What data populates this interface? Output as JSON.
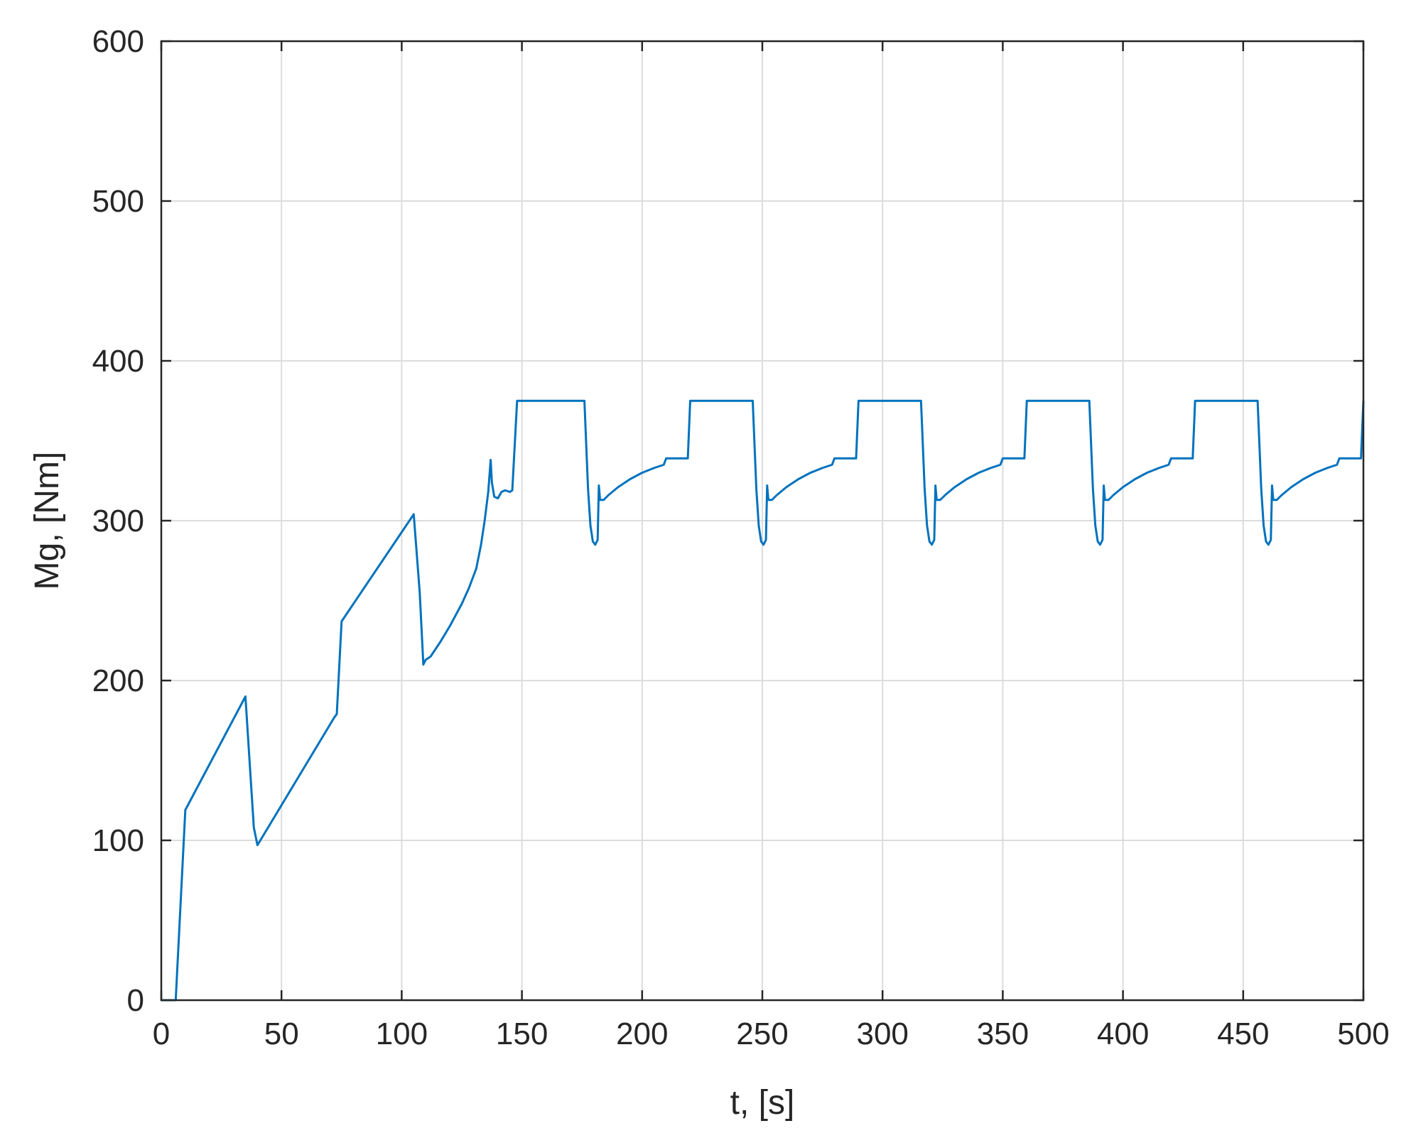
{
  "chart_data": {
    "type": "line",
    "title": "",
    "xlabel": "t, [s]",
    "ylabel": "Mg, [Nm]",
    "xlim": [
      0,
      500
    ],
    "ylim": [
      0,
      600
    ],
    "xticks": [
      0,
      50,
      100,
      150,
      200,
      250,
      300,
      350,
      400,
      450,
      500
    ],
    "yticks": [
      0,
      100,
      200,
      300,
      400,
      500,
      600
    ],
    "xtick_labels": [
      "0",
      "50",
      "100",
      "150",
      "200",
      "250",
      "300",
      "350",
      "400",
      "450",
      "500"
    ],
    "ytick_labels": [
      "0",
      "100",
      "200",
      "300",
      "400",
      "500",
      "600"
    ],
    "grid": true,
    "legend": "none",
    "series": [
      {
        "color": "#0072BD",
        "x": [
          0,
          3,
          6,
          10,
          35,
          38.5,
          40,
          72,
          73,
          75,
          105,
          107.5,
          109,
          110,
          112,
          116,
          120,
          125,
          128,
          131,
          133,
          134.5,
          136,
          137,
          137.5,
          138.5,
          140,
          141.5,
          143,
          145,
          146,
          148,
          176,
          177.5,
          178.5,
          179.5,
          180.5,
          181.5,
          182,
          182.5,
          184,
          186,
          190,
          195,
          200,
          205,
          209,
          210,
          211,
          218,
          219,
          220,
          246,
          247.5,
          248.5,
          249.5,
          250.5,
          251.5,
          252,
          252.5,
          254,
          256,
          260,
          265,
          270,
          275,
          279,
          280,
          281,
          288,
          289,
          290,
          316,
          317.5,
          318.5,
          319.5,
          320.5,
          321.5,
          322,
          322.5,
          324,
          326,
          330,
          335,
          340,
          345,
          349,
          350,
          351,
          358,
          359,
          360,
          386,
          387.5,
          388.5,
          389.5,
          390.5,
          391.5,
          392,
          392.5,
          394,
          396,
          400,
          405,
          410,
          415,
          419,
          420,
          421,
          428,
          429,
          430,
          456,
          457.5,
          458.5,
          459.5,
          460.5,
          461.5,
          462,
          462.5,
          464,
          466,
          470,
          475,
          480,
          485,
          489,
          490,
          491,
          498,
          499,
          500
        ],
        "y": [
          0,
          0,
          0,
          119,
          190,
          108,
          97,
          177,
          179,
          237,
          304,
          255,
          210,
          213,
          215,
          224,
          234,
          248,
          258,
          270,
          285,
          300,
          318,
          338,
          324,
          315,
          314,
          318,
          319,
          318,
          319,
          375,
          375,
          320,
          297,
          287,
          285,
          288,
          322,
          313,
          313,
          316,
          321,
          326,
          330,
          333,
          335,
          339,
          339,
          339,
          339,
          375,
          375,
          320,
          297,
          287,
          285,
          288,
          322,
          313,
          313,
          316,
          321,
          326,
          330,
          333,
          335,
          339,
          339,
          339,
          339,
          375,
          375,
          320,
          297,
          287,
          285,
          288,
          322,
          313,
          313,
          316,
          321,
          326,
          330,
          333,
          335,
          339,
          339,
          339,
          339,
          375,
          375,
          320,
          297,
          287,
          285,
          288,
          322,
          313,
          313,
          316,
          321,
          326,
          330,
          333,
          335,
          339,
          339,
          339,
          339,
          375,
          375,
          320,
          297,
          287,
          285,
          288,
          322,
          313,
          313,
          316,
          321,
          326,
          330,
          333,
          335,
          339,
          339,
          339,
          339,
          375
        ]
      }
    ]
  }
}
